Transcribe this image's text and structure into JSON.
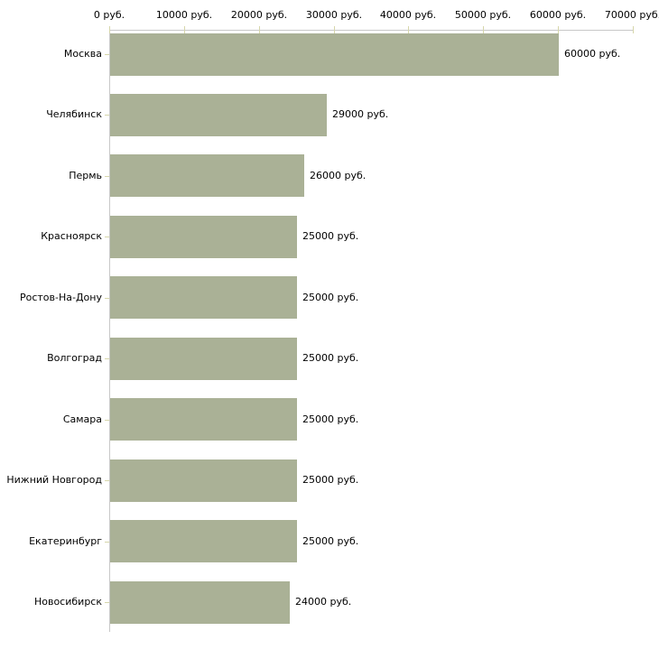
{
  "chart_data": {
    "type": "bar",
    "orientation": "horizontal",
    "title": "",
    "xlabel": "",
    "ylabel": "",
    "unit": "руб.",
    "categories": [
      "Москва",
      "Челябинск",
      "Пермь",
      "Красноярск",
      "Ростов-На-Дону",
      "Волгоград",
      "Самара",
      "Нижний Новгород",
      "Екатеринбург",
      "Новосибирск"
    ],
    "values": [
      60000,
      29000,
      26000,
      25000,
      25000,
      25000,
      25000,
      25000,
      25000,
      24000
    ],
    "value_labels": [
      "60000 руб.",
      "29000 руб.",
      "26000 руб.",
      "25000 руб.",
      "25000 руб.",
      "25000 руб.",
      "25000 руб.",
      "25000 руб.",
      "25000 руб.",
      "24000 руб."
    ],
    "x_ticks": [
      0,
      10000,
      20000,
      30000,
      40000,
      50000,
      60000,
      70000
    ],
    "x_tick_labels": [
      "0 руб.",
      "10000 руб.",
      "20000 руб.",
      "30000 руб.",
      "40000 руб.",
      "50000 руб.",
      "60000 руб.",
      "70000 руб."
    ],
    "xlim": [
      0,
      70000
    ],
    "grid": false,
    "legend": false,
    "colors": {
      "bar_fill": "#aab196",
      "axis_line": "#c8c8c8",
      "tick_mark": "#d6d6aa",
      "text": "#000000",
      "background": "#ffffff"
    }
  }
}
